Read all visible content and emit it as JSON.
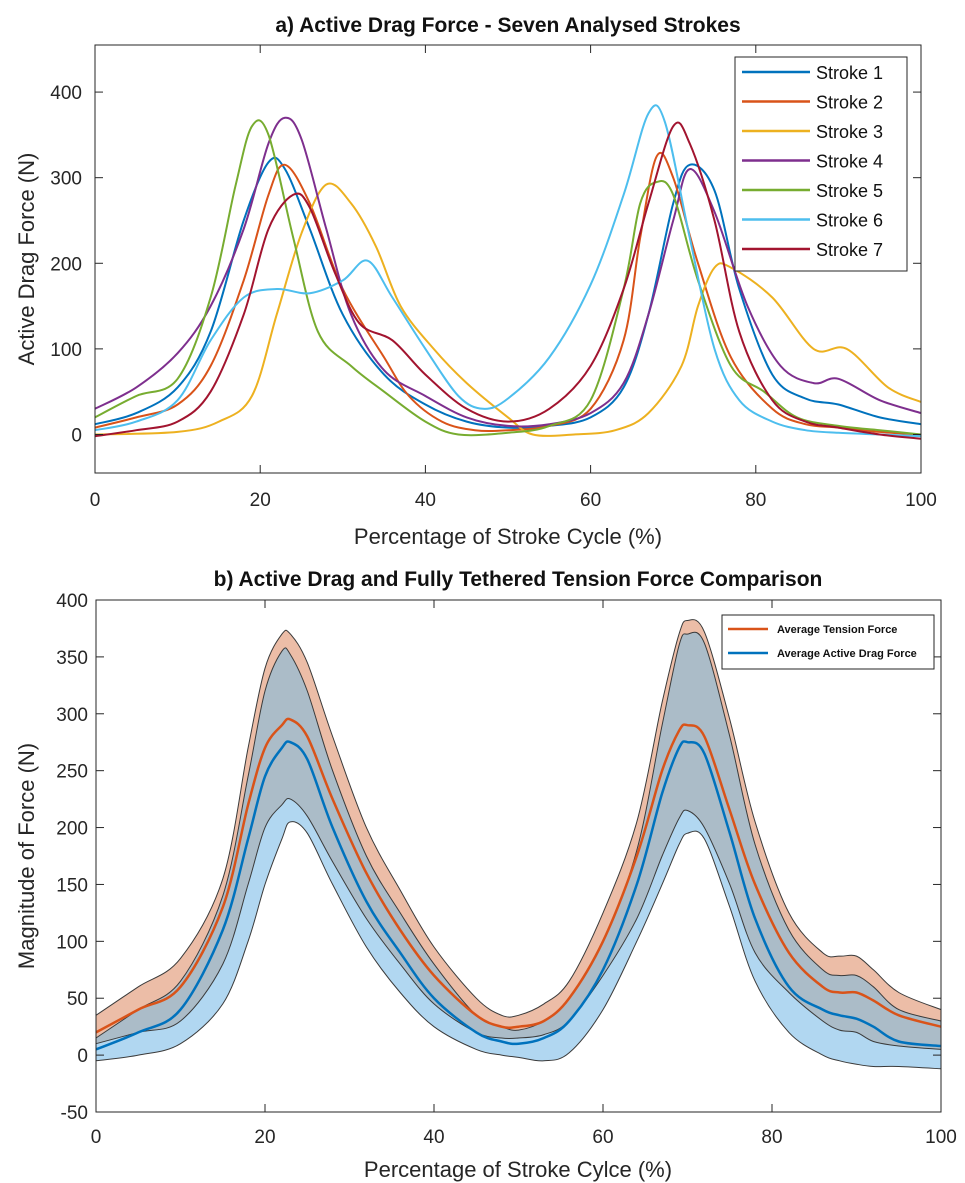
{
  "chart_data": [
    {
      "type": "line",
      "title": "a) Active Drag Force - Seven Analysed Strokes",
      "xlabel": "Percentage of Stroke Cycle (%)",
      "ylabel": "Active Drag Force (N)",
      "xlim": [
        0,
        100
      ],
      "ylim": [
        -45,
        455
      ],
      "xticks": [
        0,
        20,
        40,
        60,
        80,
        100
      ],
      "yticks": [
        0,
        100,
        200,
        300,
        400
      ],
      "legend": "top-right",
      "grid": false,
      "series": [
        {
          "name": "Stroke 1",
          "color": "#0072BD",
          "points": [
            [
              0,
              12
            ],
            [
              5,
              25
            ],
            [
              10,
              55
            ],
            [
              14,
              120
            ],
            [
              18,
              250
            ],
            [
              21,
              318
            ],
            [
              23,
              310
            ],
            [
              26,
              240
            ],
            [
              30,
              140
            ],
            [
              35,
              70
            ],
            [
              40,
              35
            ],
            [
              45,
              15
            ],
            [
              50,
              8
            ],
            [
              55,
              10
            ],
            [
              60,
              20
            ],
            [
              64,
              55
            ],
            [
              67,
              140
            ],
            [
              70,
              270
            ],
            [
              72,
              315
            ],
            [
              75,
              285
            ],
            [
              78,
              170
            ],
            [
              82,
              70
            ],
            [
              86,
              42
            ],
            [
              90,
              35
            ],
            [
              95,
              20
            ],
            [
              100,
              12
            ]
          ]
        },
        {
          "name": "Stroke 2",
          "color": "#D95319",
          "points": [
            [
              0,
              8
            ],
            [
              5,
              20
            ],
            [
              10,
              35
            ],
            [
              14,
              80
            ],
            [
              18,
              180
            ],
            [
              21,
              280
            ],
            [
              23,
              315
            ],
            [
              26,
              270
            ],
            [
              30,
              170
            ],
            [
              35,
              90
            ],
            [
              38,
              45
            ],
            [
              42,
              15
            ],
            [
              46,
              5
            ],
            [
              50,
              5
            ],
            [
              55,
              10
            ],
            [
              60,
              30
            ],
            [
              64,
              110
            ],
            [
              66,
              230
            ],
            [
              68,
              325
            ],
            [
              70,
              300
            ],
            [
              73,
              200
            ],
            [
              77,
              90
            ],
            [
              82,
              30
            ],
            [
              86,
              12
            ],
            [
              90,
              8
            ],
            [
              95,
              3
            ],
            [
              100,
              0
            ]
          ]
        },
        {
          "name": "Stroke 3",
          "color": "#EDB120",
          "points": [
            [
              0,
              0
            ],
            [
              10,
              3
            ],
            [
              15,
              15
            ],
            [
              19,
              45
            ],
            [
              22,
              140
            ],
            [
              25,
              235
            ],
            [
              28,
              292
            ],
            [
              31,
              270
            ],
            [
              34,
              220
            ],
            [
              37,
              150
            ],
            [
              41,
              100
            ],
            [
              45,
              60
            ],
            [
              50,
              20
            ],
            [
              53,
              0
            ],
            [
              58,
              0
            ],
            [
              63,
              5
            ],
            [
              67,
              25
            ],
            [
              71,
              80
            ],
            [
              73,
              150
            ],
            [
              75,
              195
            ],
            [
              77,
              195
            ],
            [
              82,
              160
            ],
            [
              87,
              100
            ],
            [
              91,
              100
            ],
            [
              96,
              55
            ],
            [
              100,
              38
            ]
          ]
        },
        {
          "name": "Stroke 4",
          "color": "#7E2F8E",
          "points": [
            [
              0,
              30
            ],
            [
              5,
              55
            ],
            [
              10,
              95
            ],
            [
              14,
              150
            ],
            [
              18,
              240
            ],
            [
              21,
              340
            ],
            [
              23,
              370
            ],
            [
              25,
              345
            ],
            [
              28,
              240
            ],
            [
              31,
              140
            ],
            [
              35,
              75
            ],
            [
              40,
              45
            ],
            [
              45,
              20
            ],
            [
              50,
              10
            ],
            [
              55,
              12
            ],
            [
              60,
              25
            ],
            [
              64,
              60
            ],
            [
              67,
              140
            ],
            [
              70,
              250
            ],
            [
              72,
              310
            ],
            [
              75,
              260
            ],
            [
              79,
              150
            ],
            [
              83,
              80
            ],
            [
              87,
              60
            ],
            [
              90,
              65
            ],
            [
              95,
              40
            ],
            [
              100,
              25
            ]
          ]
        },
        {
          "name": "Stroke 5",
          "color": "#77AC30",
          "points": [
            [
              0,
              20
            ],
            [
              5,
              45
            ],
            [
              10,
              65
            ],
            [
              14,
              160
            ],
            [
              17,
              290
            ],
            [
              19,
              360
            ],
            [
              21,
              350
            ],
            [
              24,
              230
            ],
            [
              27,
              120
            ],
            [
              31,
              80
            ],
            [
              35,
              50
            ],
            [
              40,
              15
            ],
            [
              44,
              0
            ],
            [
              50,
              2
            ],
            [
              55,
              10
            ],
            [
              60,
              40
            ],
            [
              64,
              170
            ],
            [
              66,
              270
            ],
            [
              68,
              295
            ],
            [
              70,
              280
            ],
            [
              73,
              180
            ],
            [
              77,
              80
            ],
            [
              81,
              50
            ],
            [
              85,
              20
            ],
            [
              90,
              10
            ],
            [
              95,
              5
            ],
            [
              100,
              0
            ]
          ]
        },
        {
          "name": "Stroke 6",
          "color": "#4DBEEE",
          "points": [
            [
              0,
              5
            ],
            [
              5,
              15
            ],
            [
              10,
              40
            ],
            [
              14,
              110
            ],
            [
              18,
              160
            ],
            [
              22,
              170
            ],
            [
              26,
              165
            ],
            [
              30,
              180
            ],
            [
              33,
              203
            ],
            [
              36,
              160
            ],
            [
              40,
              100
            ],
            [
              44,
              45
            ],
            [
              47,
              30
            ],
            [
              50,
              42
            ],
            [
              55,
              90
            ],
            [
              60,
              175
            ],
            [
              64,
              280
            ],
            [
              67,
              375
            ],
            [
              69,
              365
            ],
            [
              72,
              230
            ],
            [
              75,
              100
            ],
            [
              78,
              40
            ],
            [
              82,
              15
            ],
            [
              86,
              5
            ],
            [
              90,
              2
            ],
            [
              95,
              0
            ],
            [
              100,
              -2
            ]
          ]
        },
        {
          "name": "Stroke 7",
          "color": "#A2142F",
          "points": [
            [
              0,
              -2
            ],
            [
              5,
              5
            ],
            [
              10,
              15
            ],
            [
              14,
              50
            ],
            [
              18,
              140
            ],
            [
              21,
              240
            ],
            [
              24,
              280
            ],
            [
              26,
              265
            ],
            [
              29,
              190
            ],
            [
              32,
              130
            ],
            [
              36,
              110
            ],
            [
              40,
              70
            ],
            [
              45,
              30
            ],
            [
              50,
              15
            ],
            [
              55,
              30
            ],
            [
              60,
              80
            ],
            [
              64,
              170
            ],
            [
              67,
              270
            ],
            [
              70,
              360
            ],
            [
              72,
              340
            ],
            [
              75,
              250
            ],
            [
              78,
              120
            ],
            [
              82,
              40
            ],
            [
              86,
              15
            ],
            [
              90,
              8
            ],
            [
              95,
              0
            ],
            [
              100,
              -5
            ]
          ]
        }
      ]
    },
    {
      "type": "area",
      "title": "b) Active Drag and Fully Tethered Tension Force Comparison",
      "xlabel": "Percentage of Stroke Cylce (%)",
      "ylabel": "Magnitude of Force (N)",
      "xlim": [
        0,
        100
      ],
      "ylim": [
        -50,
        400
      ],
      "xticks": [
        0,
        20,
        40,
        60,
        80,
        100
      ],
      "yticks": [
        -50,
        0,
        50,
        100,
        150,
        200,
        250,
        300,
        350,
        400
      ],
      "legend": "top-right",
      "grid": false,
      "x": [
        0,
        5,
        10,
        15,
        18,
        20,
        22,
        23,
        25,
        28,
        32,
        36,
        40,
        45,
        48,
        50,
        53,
        56,
        60,
        64,
        67,
        69,
        70,
        72,
        75,
        78,
        82,
        86,
        88,
        90,
        92,
        95,
        100
      ],
      "series": [
        {
          "name": "Average Tension Force",
          "color": "#D95319",
          "band_color": "#F5B79A",
          "mean": [
            20,
            40,
            60,
            130,
            220,
            270,
            290,
            295,
            280,
            225,
            160,
            110,
            70,
            35,
            25,
            25,
            30,
            50,
            100,
            175,
            250,
            285,
            290,
            280,
            215,
            150,
            90,
            60,
            55,
            55,
            48,
            35,
            25
          ],
          "upper": [
            35,
            60,
            85,
            155,
            270,
            340,
            370,
            370,
            345,
            280,
            200,
            145,
            95,
            50,
            35,
            35,
            45,
            65,
            125,
            205,
            310,
            370,
            382,
            372,
            295,
            205,
            125,
            90,
            87,
            87,
            75,
            55,
            40
          ],
          "lower": [
            10,
            20,
            30,
            80,
            150,
            200,
            220,
            225,
            210,
            170,
            120,
            80,
            45,
            20,
            15,
            15,
            18,
            30,
            70,
            120,
            175,
            208,
            215,
            200,
            150,
            90,
            55,
            30,
            22,
            20,
            12,
            8,
            5
          ]
        },
        {
          "name": "Average Active Drag Force",
          "color": "#0072BD",
          "band_color": "#A8D3F0",
          "mean": [
            5,
            20,
            40,
            110,
            190,
            245,
            270,
            275,
            260,
            200,
            135,
            90,
            50,
            20,
            12,
            10,
            15,
            30,
            75,
            150,
            230,
            270,
            275,
            265,
            195,
            120,
            60,
            40,
            35,
            32,
            25,
            12,
            8
          ],
          "upper": [
            15,
            40,
            65,
            140,
            245,
            320,
            355,
            352,
            320,
            250,
            175,
            125,
            80,
            35,
            25,
            22,
            30,
            50,
            100,
            180,
            290,
            360,
            370,
            362,
            280,
            185,
            110,
            75,
            70,
            70,
            60,
            40,
            30
          ],
          "lower": [
            -5,
            0,
            10,
            45,
            100,
            150,
            190,
            205,
            195,
            150,
            95,
            55,
            25,
            5,
            0,
            -2,
            -5,
            2,
            40,
            100,
            150,
            185,
            195,
            190,
            130,
            65,
            20,
            0,
            -5,
            -8,
            -10,
            -10,
            -12
          ]
        }
      ]
    }
  ]
}
